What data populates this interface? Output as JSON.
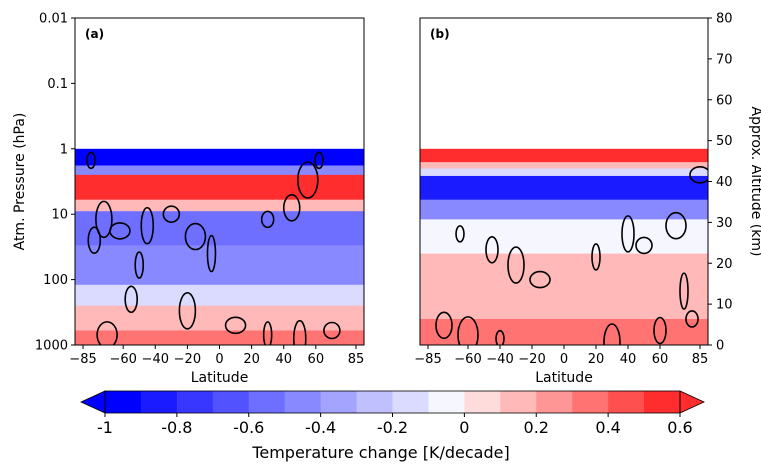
{
  "chart_data": [
    {
      "type": "heatmap",
      "panel_label": "(a)",
      "title": "",
      "xlabel": "Latitude",
      "ylabel": "Atm. Pressure (hPa)",
      "x_ticks": [
        "−85",
        "−60",
        "−40",
        "−20",
        "0",
        "20",
        "40",
        "60",
        "85"
      ],
      "x_tick_values": [
        -85,
        -60,
        -40,
        -20,
        0,
        20,
        40,
        60,
        85
      ],
      "y_ticks": [
        "0.01",
        "0.1",
        "1",
        "10",
        "100",
        "1000"
      ],
      "y_tick_values": [
        0.01,
        0.1,
        1,
        10,
        100,
        1000
      ],
      "xlim": [
        -90,
        90
      ],
      "ylim": [
        1000,
        0.01
      ],
      "y_scale": "log",
      "data_top_hpa": 1,
      "grid": false,
      "field_bands": [
        {
          "p_top": 1,
          "p_bottom": 1.8,
          "value": -1.0
        },
        {
          "p_top": 1.8,
          "p_bottom": 2.5,
          "value": -0.5
        },
        {
          "p_top": 2.5,
          "p_bottom": 6,
          "value": 0.6
        },
        {
          "p_top": 6,
          "p_bottom": 9,
          "value": 0.2
        },
        {
          "p_top": 9,
          "p_bottom": 30,
          "value": -0.6
        },
        {
          "p_top": 30,
          "p_bottom": 120,
          "value": -0.5
        },
        {
          "p_top": 120,
          "p_bottom": 250,
          "value": -0.2
        },
        {
          "p_top": 250,
          "p_bottom": 600,
          "value": 0.2
        },
        {
          "p_top": 600,
          "p_bottom": 1000,
          "value": 0.3
        }
      ]
    },
    {
      "type": "heatmap",
      "panel_label": "(b)",
      "title": "",
      "xlabel": "Latitude",
      "y2label": "Approx. Altitude (km)",
      "x_ticks": [
        "−85",
        "−60",
        "−40",
        "−20",
        "0",
        "20",
        "40",
        "60",
        "85"
      ],
      "x_tick_values": [
        -85,
        -60,
        -40,
        -20,
        0,
        20,
        40,
        60,
        85
      ],
      "y2_ticks": [
        "0",
        "10",
        "20",
        "30",
        "40",
        "50",
        "60",
        "70",
        "80"
      ],
      "y2_tick_values": [
        0,
        10,
        20,
        30,
        40,
        50,
        60,
        70,
        80
      ],
      "xlim": [
        -90,
        90
      ],
      "y2lim": [
        0,
        80
      ],
      "grid": false,
      "field_bands": [
        {
          "p_top": 1,
          "p_bottom": 1.6,
          "value": 0.6
        },
        {
          "p_top": 1.6,
          "p_bottom": 2.0,
          "value": 0.2
        },
        {
          "p_top": 2.0,
          "p_bottom": 2.6,
          "value": -0.2
        },
        {
          "p_top": 2.6,
          "p_bottom": 6,
          "value": -0.8
        },
        {
          "p_top": 6,
          "p_bottom": 12,
          "value": -0.4
        },
        {
          "p_top": 12,
          "p_bottom": 40,
          "value": -0.1
        },
        {
          "p_top": 40,
          "p_bottom": 100,
          "value": 0.1
        },
        {
          "p_top": 100,
          "p_bottom": 400,
          "value": 0.2
        },
        {
          "p_top": 400,
          "p_bottom": 1000,
          "value": 0.3
        }
      ]
    }
  ],
  "colorbar": {
    "label": "Temperature change [K/decade]",
    "tick_labels": [
      "-1",
      "-0.8",
      "-0.6",
      "-0.4",
      "-0.2",
      "0",
      "0.2",
      "0.4",
      "0.6"
    ],
    "tick_values": [
      -1,
      -0.8,
      -0.6,
      -0.4,
      -0.2,
      0,
      0.2,
      0.4,
      0.6
    ],
    "vmin": -1,
    "vmax": 0.6,
    "levels": 16,
    "extend": "both",
    "colors": [
      "#0000ff",
      "#1b1bff",
      "#3737ff",
      "#5252ff",
      "#6e6eff",
      "#8989ff",
      "#a4a4ff",
      "#c0c0ff",
      "#dbdbff",
      "#f6f6ff",
      "#ffdcdc",
      "#ffb9b9",
      "#ff9696",
      "#ff7373",
      "#ff5050",
      "#ff2d2d"
    ]
  }
}
